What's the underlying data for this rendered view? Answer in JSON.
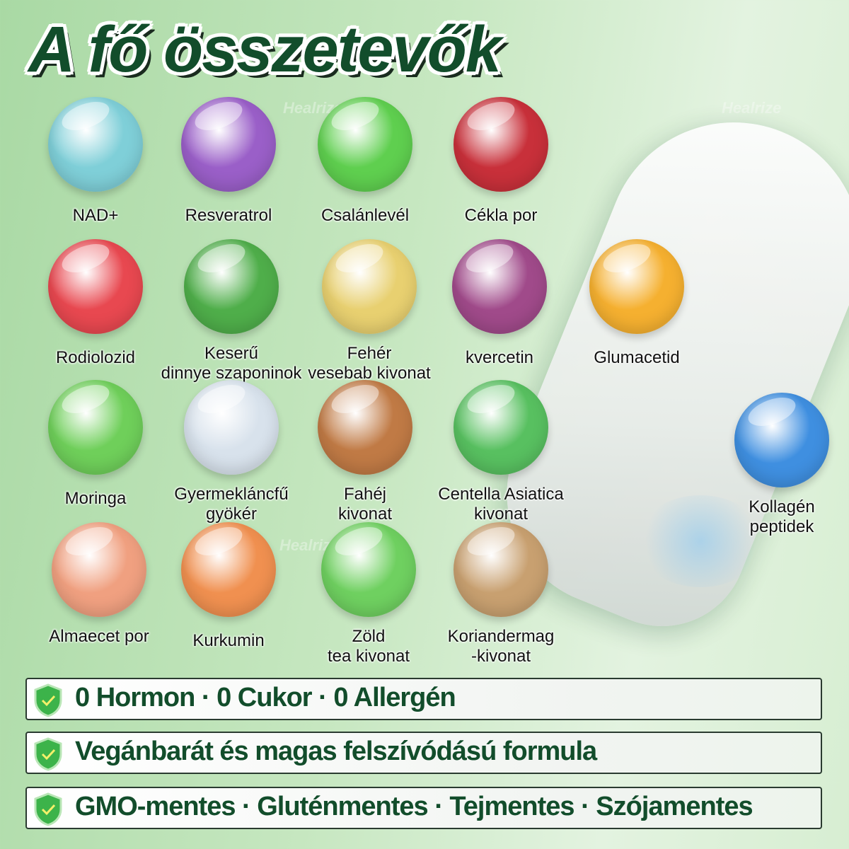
{
  "title": "A fő összetevők",
  "watermark": "Healrize",
  "ingredients": [
    {
      "label": "NAD+",
      "color": "#7fcfd8"
    },
    {
      "label": "Resveratrol",
      "color": "#9a5fc8"
    },
    {
      "label": "Csalánlevél",
      "color": "#5fcf4f"
    },
    {
      "label": "Cékla por",
      "color": "#c8303a"
    },
    {
      "label": "Rodiolozid",
      "color": "#e84850"
    },
    {
      "label": "Keserű dinnye szaponinok",
      "color": "#4fae4a"
    },
    {
      "label": "Fehér vesebab kivonat",
      "color": "#e8d070"
    },
    {
      "label": "kvercetin",
      "color": "#a04a8a"
    },
    {
      "label": "Glumacetid",
      "color": "#f5b030"
    },
    {
      "label": "Moringa",
      "color": "#6fcf5a"
    },
    {
      "label": "Gyermekláncfű gyökér",
      "color": "#d8e2ec"
    },
    {
      "label": "Fahéj kivonat",
      "color": "#c07a45"
    },
    {
      "label": "Centella Asiatica kivonat",
      "color": "#58c060"
    },
    {
      "label": "Kollagén peptidek",
      "color": "#3f8fe0"
    },
    {
      "label": "Almaecet por",
      "color": "#f0a080"
    },
    {
      "label": "Kurkumin",
      "color": "#f09050"
    },
    {
      "label": "Zöld tea kivonat",
      "color": "#6fd060"
    },
    {
      "label": "Koriandermag -kivonat",
      "color": "#c8a070"
    }
  ],
  "features": [
    {
      "text": "0 Hormon · 0 Cukor · 0 Allergén",
      "icon": "shield-check-icon"
    },
    {
      "text": "Vegánbarát és magas felszívódású formula",
      "icon": "shield-check-icon"
    },
    {
      "text": "GMO-mentes · Gluténmentes · Tejmentes · Szójamentes",
      "icon": "shield-check-icon"
    }
  ],
  "colors": {
    "title": "#124d2b",
    "shield": "#3cb34a"
  }
}
